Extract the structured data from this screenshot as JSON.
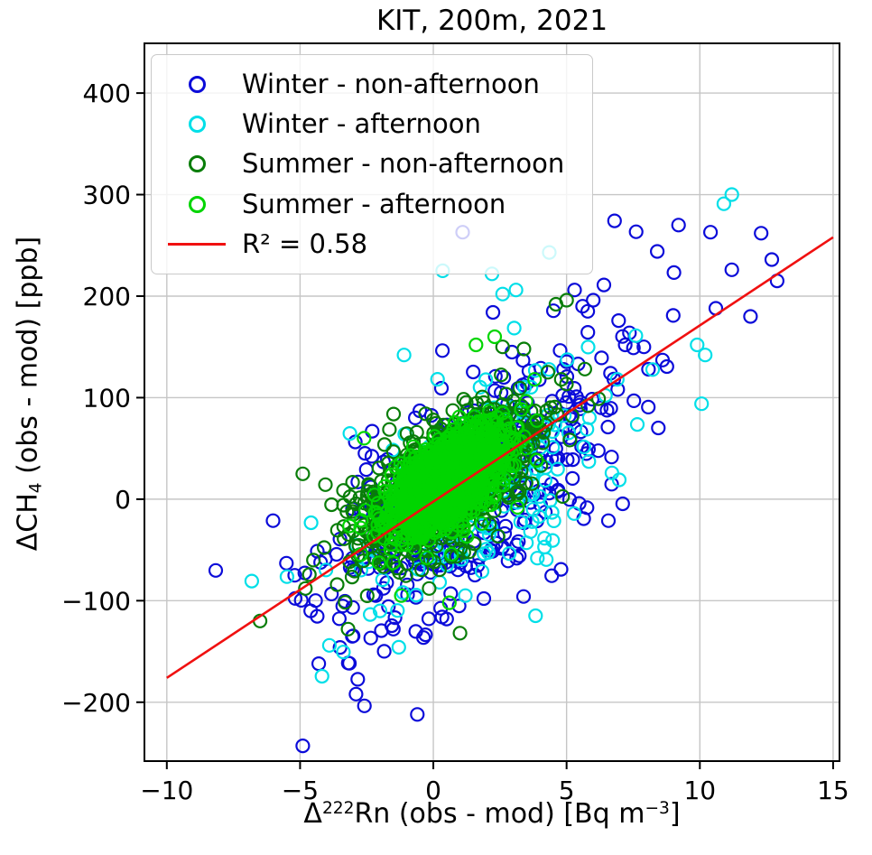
{
  "title": "KIT, 200m, 2021",
  "chart_data": {
    "type": "scatter",
    "title": "KIT, 200m, 2021",
    "xlabel": "Δ²²²Rn (obs - mod) [Bq m⁻³]",
    "ylabel": "ΔCH₄ (obs - mod) [ppb]",
    "xlim": [
      -10.84,
      15.24
    ],
    "ylim": [
      -258,
      449
    ],
    "xticks": {
      "values": [
        -10,
        -5,
        0,
        5,
        10,
        15
      ],
      "labels": [
        "−10",
        "−5",
        "0",
        "5",
        "10",
        "15"
      ]
    },
    "yticks": {
      "values": [
        -200,
        -100,
        0,
        100,
        200,
        300,
        400
      ],
      "labels": [
        "−200",
        "−100",
        "0",
        "100",
        "200",
        "300",
        "400"
      ]
    },
    "grid": true,
    "grid_color": "#c6c6c6",
    "legend_position": "upper left",
    "labels": {
      "xlabel": {
        "pre": "Δ",
        "iso": "222",
        "mid": "Rn (obs - mod) [Bq m",
        "exp": "−3",
        "post": "]"
      },
      "ylabel": {
        "pre": "ΔCH",
        "sub": "4",
        "post": " (obs - mod) [ppb]"
      }
    },
    "regression": {
      "label": "R² = 0.58",
      "r2": 0.58,
      "color": "#f01010",
      "x": [
        -10.0,
        15.0
      ],
      "y": [
        -176,
        258
      ]
    },
    "point_data_note": "dense point clouds approximated by cluster statistics read from the figure; outliers listed explicitly as [x Bq m⁻³, y ppb]",
    "series": [
      {
        "name": "Winter - non-afternoon",
        "color": "#0b0bd9",
        "marker": "circle",
        "seed": 11,
        "n": 430,
        "cluster": {
          "cx": 1.2,
          "cy": 5,
          "sx": 2.7,
          "slope": 16,
          "res": 52
        },
        "outliers": [
          [
            9.2,
            270
          ],
          [
            12.3,
            262
          ],
          [
            10.4,
            263
          ],
          [
            12.7,
            236
          ],
          [
            11.2,
            226
          ],
          [
            8.4,
            244
          ],
          [
            12.9,
            215
          ],
          [
            9.0,
            181
          ],
          [
            10.6,
            188
          ],
          [
            11.9,
            180
          ],
          [
            5.3,
            206
          ],
          [
            6.4,
            211
          ],
          [
            6.0,
            196
          ],
          [
            5.6,
            190
          ],
          [
            7.2,
            152
          ],
          [
            7.9,
            150
          ],
          [
            8.6,
            137
          ],
          [
            1.1,
            263
          ],
          [
            -4.9,
            -243
          ],
          [
            -0.6,
            -212
          ],
          [
            -2.9,
            -192
          ],
          [
            -4.3,
            -162
          ],
          [
            -3.5,
            -146
          ],
          [
            -4.6,
            -110
          ],
          [
            -5.2,
            -75
          ],
          [
            -1.5,
            -128
          ],
          [
            0.5,
            -118
          ]
        ]
      },
      {
        "name": "Winter - afternoon",
        "color": "#00dfe8",
        "marker": "circle",
        "seed": 22,
        "n": 175,
        "cluster": {
          "cx": 1.6,
          "cy": 12,
          "sx": 2.7,
          "slope": 15,
          "res": 48
        },
        "outliers": [
          [
            11.2,
            300
          ],
          [
            10.9,
            291
          ],
          [
            4.35,
            243
          ],
          [
            0.35,
            225
          ],
          [
            2.2,
            222
          ],
          [
            3.1,
            206
          ],
          [
            2.6,
            202
          ],
          [
            7.6,
            161
          ],
          [
            9.9,
            152
          ],
          [
            10.2,
            142
          ],
          [
            -1.1,
            142
          ],
          [
            6.9,
            118
          ],
          [
            -3.9,
            -144
          ],
          [
            -2.0,
            -110
          ],
          [
            1.2,
            -95
          ]
        ]
      },
      {
        "name": "Summer - non-afternoon",
        "color": "#087d08",
        "marker": "circle",
        "seed": 33,
        "n": 800,
        "cluster": {
          "cx": 0.4,
          "cy": 15,
          "sx": 1.65,
          "slope": 14,
          "res": 30
        },
        "outliers": [
          [
            -6.5,
            -120
          ],
          [
            -4.9,
            25
          ],
          [
            5.0,
            196
          ],
          [
            4.6,
            192
          ],
          [
            2.6,
            150
          ],
          [
            3.4,
            148
          ],
          [
            -3.2,
            -128
          ],
          [
            1.0,
            -132
          ],
          [
            5.8,
            92
          ],
          [
            6.2,
            99
          ],
          [
            -4.5,
            -60
          ],
          [
            -4.8,
            -88
          ],
          [
            4.3,
            125
          ],
          [
            4.8,
            118
          ]
        ]
      },
      {
        "name": "Summer - afternoon",
        "color": "#00d500",
        "marker": "circle",
        "seed": 44,
        "n": 1500,
        "cluster": {
          "cx": 0.45,
          "cy": 15,
          "sx": 1.05,
          "slope": 15,
          "res": 20
        },
        "outliers": [
          [
            1.6,
            152
          ],
          [
            2.3,
            160
          ],
          [
            -1.2,
            -95
          ],
          [
            0.6,
            -102
          ],
          [
            3.8,
            118
          ],
          [
            -2.6,
            60
          ]
        ]
      }
    ],
    "legend": [
      {
        "id": "winter-non-afternoon",
        "marker": "circle",
        "color": "#0b0bd9",
        "label": "Winter - non-afternoon"
      },
      {
        "id": "winter-afternoon",
        "marker": "circle",
        "color": "#00dfe8",
        "label": "Winter - afternoon"
      },
      {
        "id": "summer-non-afternoon",
        "marker": "circle",
        "color": "#087d08",
        "label": "Summer - non-afternoon"
      },
      {
        "id": "summer-afternoon",
        "marker": "circle",
        "color": "#00d500",
        "label": "Summer - afternoon"
      },
      {
        "id": "fit-line",
        "marker": "line",
        "color": "#f01010",
        "label": "R² = 0.58"
      }
    ]
  }
}
